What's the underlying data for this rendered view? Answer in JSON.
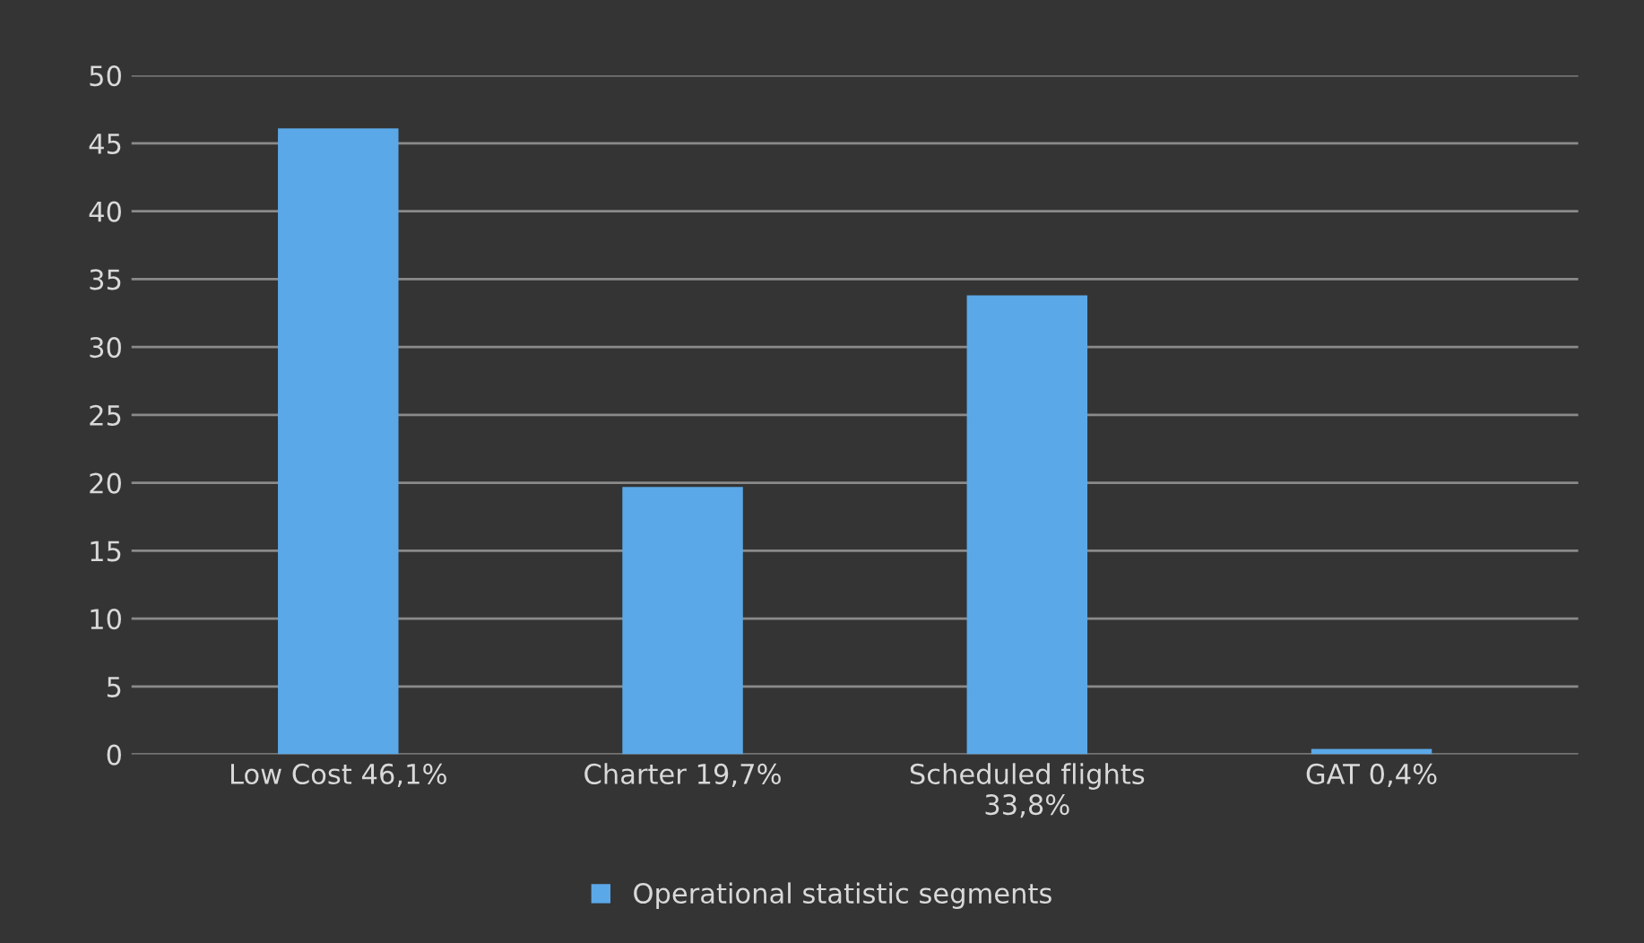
{
  "chart_data": {
    "type": "bar",
    "categories": [
      "Low Cost 46,1%",
      "Charter 19,7%",
      "Scheduled flights 33,8%",
      "GAT 0,4%"
    ],
    "series": [
      {
        "name": "Operational statistic segments",
        "color": "#5ba8e8",
        "values": [
          46.1,
          19.7,
          33.8,
          0.4
        ]
      }
    ],
    "ylim": [
      0,
      50
    ],
    "yticks": [
      0,
      5,
      10,
      15,
      20,
      25,
      30,
      35,
      40,
      45,
      50
    ],
    "grid": "y",
    "legend": "bottom"
  }
}
